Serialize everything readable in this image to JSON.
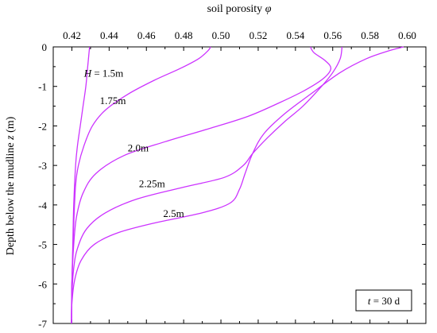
{
  "chart_data": {
    "type": "line",
    "xlabel_text": "soil porosity ",
    "xlabel_symbol": "φ",
    "ylabel_text": "Depth below the mudline ",
    "ylabel_symbol": "z",
    "ylabel_unit": " (m)",
    "x_axis_position": "top",
    "xlim": [
      0.41,
      0.61
    ],
    "ylim": [
      -7,
      0
    ],
    "xticks": [
      0.42,
      0.44,
      0.46,
      0.48,
      0.5,
      0.52,
      0.54,
      0.56,
      0.58,
      0.6
    ],
    "xtick_labels": [
      "0.42",
      "0.44",
      "0.46",
      "0.48",
      "0.50",
      "0.52",
      "0.54",
      "0.56",
      "0.58",
      "0.60"
    ],
    "yticks": [
      0,
      -1,
      -2,
      -3,
      -4,
      -5,
      -6,
      -7
    ],
    "ytick_labels": [
      "0",
      "-1",
      "-2",
      "-3",
      "-4",
      "-5",
      "-6",
      "-7"
    ],
    "grid": false,
    "line_color": "#cc33ff",
    "annotation": {
      "italic": "t",
      "text": " = 30 d"
    },
    "series": [
      {
        "name": "H = 1.5m",
        "label_italic": "H",
        "label_rest": " = 1.5m",
        "label_at": [
          0.4265,
          -0.75
        ],
        "x": [
          0.4295,
          0.4285,
          0.4275,
          0.426,
          0.4245,
          0.423,
          0.422,
          0.421,
          0.4205,
          0.42,
          0.4198
        ],
        "y": [
          0,
          -0.5,
          -1.0,
          -1.5,
          -2.0,
          -2.5,
          -3.0,
          -4.0,
          -5.0,
          -6.0,
          -7.0
        ]
      },
      {
        "name": "1.75m",
        "label_italic": "",
        "label_rest": "1.75m",
        "label_at": [
          0.435,
          -1.45
        ],
        "x": [
          0.4945,
          0.493,
          0.488,
          0.478,
          0.464,
          0.45,
          0.438,
          0.431,
          0.4265,
          0.4235,
          0.422,
          0.421,
          0.42,
          0.4198
        ],
        "y": [
          0,
          -0.1,
          -0.3,
          -0.55,
          -0.85,
          -1.2,
          -1.6,
          -2.0,
          -2.5,
          -3.0,
          -3.5,
          -4.5,
          -6.0,
          -7.0
        ]
      },
      {
        "name": "2.0m",
        "label_italic": "",
        "label_rest": "2.0m",
        "label_at": [
          0.45,
          -2.65
        ],
        "x": [
          0.548,
          0.55,
          0.556,
          0.559,
          0.555,
          0.545,
          0.532,
          0.515,
          0.495,
          0.47,
          0.448,
          0.433,
          0.426,
          0.4225,
          0.421,
          0.42,
          0.4198
        ],
        "y": [
          0,
          -0.15,
          -0.35,
          -0.55,
          -0.8,
          -1.1,
          -1.4,
          -1.75,
          -2.05,
          -2.4,
          -2.75,
          -3.2,
          -3.7,
          -4.3,
          -5.0,
          -6.0,
          -7.0
        ]
      },
      {
        "name": "2.25m",
        "label_italic": "",
        "label_rest": "2.25m",
        "label_at": [
          0.456,
          -3.55
        ],
        "x": [
          0.565,
          0.564,
          0.56,
          0.554,
          0.544,
          0.534,
          0.525,
          0.517,
          0.512,
          0.502,
          0.48,
          0.455,
          0.438,
          0.428,
          0.423,
          0.421,
          0.42,
          0.4198
        ],
        "y": [
          0,
          -0.3,
          -0.65,
          -1.0,
          -1.5,
          -1.9,
          -2.3,
          -2.7,
          -3.0,
          -3.3,
          -3.55,
          -3.85,
          -4.2,
          -4.6,
          -5.1,
          -5.6,
          -6.3,
          -7.0
        ]
      },
      {
        "name": "2.5m",
        "label_italic": "",
        "label_rest": "2.5m",
        "label_at": [
          0.469,
          -4.3
        ],
        "x": [
          0.598,
          0.59,
          0.578,
          0.564,
          0.548,
          0.534,
          0.523,
          0.517,
          0.513,
          0.51,
          0.505,
          0.49,
          0.465,
          0.445,
          0.432,
          0.425,
          0.4215,
          0.42,
          0.4198
        ],
        "y": [
          0,
          -0.1,
          -0.3,
          -0.65,
          -1.2,
          -1.7,
          -2.2,
          -2.7,
          -3.2,
          -3.6,
          -3.95,
          -4.2,
          -4.45,
          -4.7,
          -5.0,
          -5.4,
          -5.9,
          -6.5,
          -7.0
        ]
      }
    ]
  }
}
